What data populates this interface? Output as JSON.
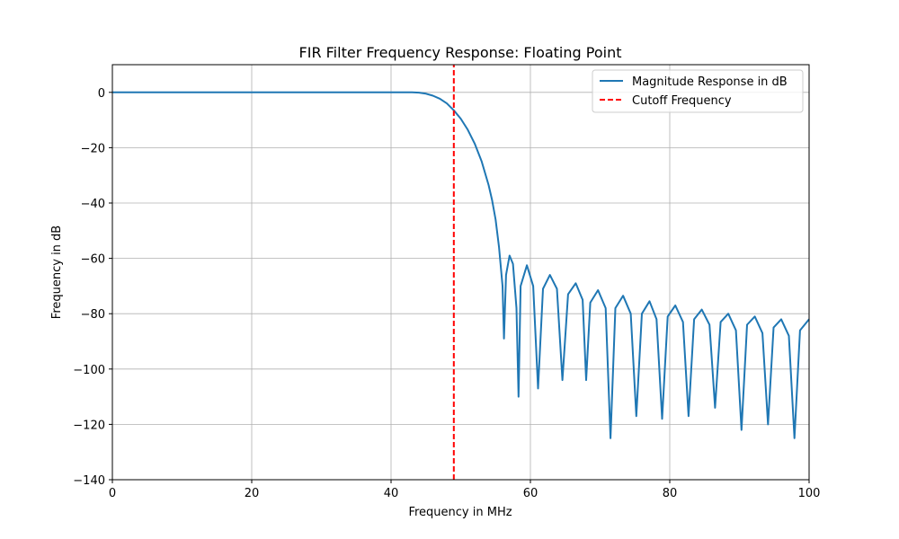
{
  "chart_data": {
    "type": "line",
    "title": "FIR Filter Frequency Response: Floating Point",
    "xlabel": "Frequency in MHz",
    "ylabel": "Frequency in dB",
    "xlim": [
      0,
      100
    ],
    "ylim": [
      -140,
      10
    ],
    "xticks": [
      0,
      20,
      40,
      60,
      80,
      100
    ],
    "yticks": [
      0,
      -20,
      -40,
      -60,
      -80,
      -100,
      -120,
      -140
    ],
    "grid": true,
    "legend_position": "top-right",
    "series": [
      {
        "name": "Magnitude Response in dB",
        "color": "#1f77b4",
        "style": "solid",
        "x": [
          0,
          10,
          20,
          30,
          38,
          42,
          43,
          44,
          45,
          46,
          47,
          48,
          49,
          50,
          51,
          52,
          53,
          54,
          54.5,
          55,
          55.5,
          56,
          56.2,
          56.5,
          57,
          57.5,
          58,
          58.3,
          58.6,
          59.5,
          60.4,
          61.1,
          61.8,
          62.8,
          63.8,
          64.6,
          65.4,
          66.5,
          67.5,
          68,
          68.6,
          69.7,
          70.8,
          71.5,
          72.2,
          73.3,
          74.4,
          75.2,
          76,
          77.1,
          78.1,
          78.9,
          79.7,
          80.8,
          81.9,
          82.7,
          83.5,
          84.6,
          85.7,
          86.5,
          87.3,
          88.4,
          89.5,
          90.3,
          91.1,
          92.2,
          93.3,
          94.1,
          94.9,
          96,
          97.1,
          97.9,
          98.7,
          100
        ],
        "y": [
          0,
          0,
          0,
          0,
          0,
          0,
          0,
          -0.1,
          -0.5,
          -1.2,
          -2.3,
          -4,
          -6.5,
          -9.5,
          -13.5,
          -18.5,
          -25,
          -33.5,
          -39,
          -46,
          -56,
          -70,
          -89,
          -66,
          -59,
          -62,
          -78,
          -110,
          -70,
          -62.5,
          -70,
          -107,
          -71,
          -66,
          -71,
          -104,
          -73,
          -69,
          -75,
          -104,
          -76,
          -71.5,
          -78,
          -125,
          -78,
          -73.5,
          -80,
          -117,
          -80,
          -75.5,
          -82,
          -118,
          -81,
          -77,
          -83,
          -117,
          -82,
          -78.5,
          -84,
          -114,
          -83,
          -80,
          -86,
          -122,
          -84,
          -81,
          -87,
          -120,
          -85,
          -82,
          -88,
          -125,
          -86,
          -82
        ]
      },
      {
        "name": "Cutoff Frequency",
        "color": "#ff0000",
        "style": "dashed",
        "x": [
          49,
          49
        ],
        "y": [
          -140,
          10
        ]
      }
    ]
  }
}
